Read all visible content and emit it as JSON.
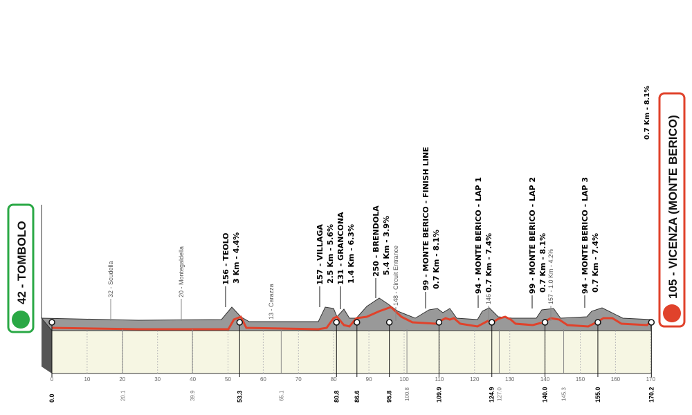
{
  "start": {
    "label": "42 - TOMBOLO"
  },
  "finish": {
    "label": "105 - VICENZA (MONTE BERICO)",
    "climb": "0.7 Km - 8.1%"
  },
  "km_ticks": [
    0,
    10,
    20,
    30,
    40,
    50,
    60,
    70,
    80,
    90,
    100,
    110,
    120,
    130,
    140,
    150,
    160,
    170
  ],
  "km_markers": [
    {
      "value": 0,
      "label": "0.0"
    },
    {
      "value": 53.3,
      "label": "53.3"
    },
    {
      "value": 80.8,
      "label": "80.8"
    },
    {
      "value": 86.6,
      "label": "86.6"
    },
    {
      "value": 95.8,
      "label": "95.8"
    },
    {
      "value": 109.9,
      "label": "109.9"
    },
    {
      "value": 124.9,
      "label": "124.9"
    },
    {
      "value": 140,
      "label": "140.0"
    },
    {
      "value": 155,
      "label": "155.0"
    },
    {
      "value": 170.2,
      "label": "170.2"
    }
  ],
  "minor_markers": [
    {
      "value": 20.1,
      "label": "20.1"
    },
    {
      "value": 39.9,
      "label": "39.9"
    },
    {
      "value": 65.1,
      "label": "65.1"
    },
    {
      "value": 100.8,
      "label": "100.8"
    },
    {
      "value": 127,
      "label": "127.0"
    },
    {
      "value": 145.3,
      "label": "145.3"
    }
  ],
  "climbs": [
    {
      "name": "156 - TEOLO",
      "detail": "3 Km - 4.4%"
    },
    {
      "name": "157 - VILLAGA",
      "detail": "2.5 Km - 5.6%"
    },
    {
      "name": "131 - GRANCONA",
      "detail": "1.4 Km - 6.3%"
    },
    {
      "name": "250 - BRENDOLA",
      "detail": "5.4 Km - 3.9%"
    },
    {
      "name": "99 - MONTE BERICO - FINISH LINE",
      "detail": "0.7 Km - 8.1%"
    },
    {
      "name": "94 - MONTE BERICO - LAP 1",
      "detail": "0.7 Km - 7.4%"
    },
    {
      "name": "99 - MONTE BERICO - LAP 2",
      "detail": "0.7 Km - 8.1%"
    },
    {
      "name": "94 - MONTE BERICO - LAP 3",
      "detail": "0.7 Km - 7.4%"
    }
  ],
  "waypoints": [
    "32 - Scudella",
    "20 - Montegaldella",
    "13 - Carazza",
    "148 - Circuit Entrance",
    "146",
    "157 - 1.0 Km - 4.2%"
  ]
}
